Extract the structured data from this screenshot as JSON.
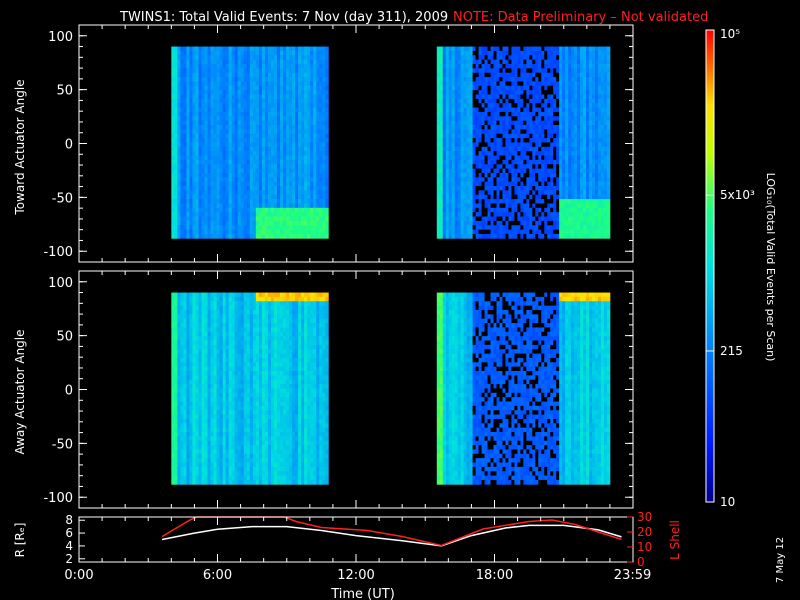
{
  "title": {
    "main": "TWINS1: Total Valid Events:  7 Nov (day 311), 2009",
    "note": "NOTE: Data Preliminary – Not validated",
    "note_color": "#ff2020"
  },
  "side_date": "7 May 12",
  "chart_data": [
    {
      "type": "heatmap",
      "name": "toward-panel",
      "ylabel": "Toward Actuator Angle",
      "xlim_hours": [
        0,
        24
      ],
      "ylim": [
        -110,
        110
      ],
      "yticks": [
        100,
        50,
        0,
        -50,
        -100
      ],
      "angle_range": [
        -88,
        90
      ],
      "data_intervals_hours": [
        [
          4.0,
          10.8
        ],
        [
          15.5,
          23.0
        ]
      ],
      "baseline_level": 0.35,
      "features": [
        {
          "hours": [
            7.6,
            10.8
          ],
          "angle": [
            -88,
            -60
          ],
          "level": 0.62,
          "note": "green band low angles"
        },
        {
          "hours": [
            20.8,
            23.0
          ],
          "angle": [
            -88,
            -50
          ],
          "level": 0.6
        },
        {
          "hours": [
            17.0,
            20.8
          ],
          "angle": [
            -88,
            90
          ],
          "level": 0.22,
          "speckled": true
        }
      ]
    },
    {
      "type": "heatmap",
      "name": "away-panel",
      "ylabel": "Away Actuator Angle",
      "xlim_hours": [
        0,
        24
      ],
      "ylim": [
        -110,
        110
      ],
      "yticks": [
        100,
        50,
        0,
        -50,
        -100
      ],
      "angle_range": [
        -88,
        90
      ],
      "data_intervals_hours": [
        [
          4.0,
          10.8
        ],
        [
          15.5,
          23.0
        ]
      ],
      "baseline_level": 0.45,
      "features": [
        {
          "hours": [
            7.6,
            10.8
          ],
          "angle": [
            80,
            90
          ],
          "level": 0.85
        },
        {
          "hours": [
            20.8,
            23.0
          ],
          "angle": [
            80,
            90
          ],
          "level": 0.85
        },
        {
          "hours": [
            17.0,
            20.8
          ],
          "angle": [
            -88,
            90
          ],
          "level": 0.25,
          "speckled": true
        }
      ]
    },
    {
      "type": "line",
      "name": "orbit-panel",
      "ylabel_left": "R [Rₑ]",
      "ylabel_right": "L Shell",
      "ylim_left": [
        1.5,
        8.5
      ],
      "yticks_left": [
        8,
        6,
        4,
        2
      ],
      "ylim_right": [
        0,
        30
      ],
      "yticks_right": [
        30,
        20,
        10,
        0
      ],
      "xticks": [
        {
          "hour": 0,
          "label": "0:00"
        },
        {
          "hour": 6,
          "label": "6:00"
        },
        {
          "hour": 12,
          "label": "12:00"
        },
        {
          "hour": 18,
          "label": "18:00"
        },
        {
          "hour": 23.98,
          "label": "23:59"
        }
      ],
      "xlabel": "Time (UT)",
      "series": [
        {
          "color": "#ffffff",
          "axis": "left",
          "x": [
            3.6,
            5,
            6,
            7.5,
            9,
            10.5,
            12,
            14,
            15.7,
            17,
            18.5,
            19.5,
            21,
            22.5,
            23.5
          ],
          "y": [
            5.0,
            6.0,
            6.6,
            7.0,
            7.0,
            6.4,
            5.6,
            4.8,
            4.0,
            5.6,
            6.8,
            7.2,
            7.2,
            6.5,
            5.4
          ]
        },
        {
          "color": "#ff2020",
          "axis": "right",
          "x": [
            3.6,
            4.8,
            5.1,
            8.9,
            9.4,
            10.5,
            12.5,
            14,
            15.7,
            17.5,
            19.5,
            20.5,
            21.5,
            22.5,
            23.5
          ],
          "y": [
            17,
            28,
            31,
            31,
            27,
            23,
            21,
            17,
            11,
            22,
            27,
            28,
            25,
            20,
            15
          ]
        }
      ]
    }
  ],
  "colorbar": {
    "label": "LOG₁₀(Total Valid Events per Scan)",
    "ticks": [
      {
        "level": 1.0,
        "label": "10⁵"
      },
      {
        "level": 0.65,
        "label": "5x10³"
      },
      {
        "level": 0.32,
        "label": "215"
      },
      {
        "level": 0.0,
        "label": "10"
      }
    ]
  }
}
